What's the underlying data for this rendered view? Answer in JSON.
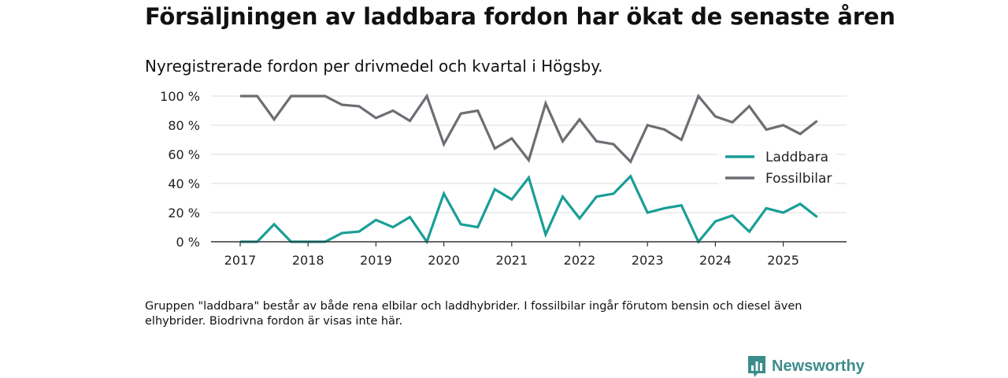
{
  "header": {
    "title": "Försäljningen av laddbara fordon har ökat de senaste åren",
    "subtitle": "Nyregistrerade fordon per drivmedel och kvartal i Högsby."
  },
  "footnote": "Gruppen \"laddbara\" består av både rena elbilar och laddhybrider. I fossilbilar ingår förutom bensin och diesel även elhybrider. Biodrivna fordon är visas inte här.",
  "brand": {
    "name": "Newsworthy",
    "icon": "newsworthy-logo-icon"
  },
  "colors": {
    "laddbara": "#1a9e96",
    "fossil": "#6e6d73",
    "grid": "#dddddd",
    "axis": "#333333"
  },
  "chart_data": {
    "type": "line",
    "title": "Försäljningen av laddbara fordon har ökat de senaste åren",
    "xlabel": "",
    "ylabel": "",
    "ylim": [
      0,
      100
    ],
    "y_ticks": [
      0,
      20,
      40,
      60,
      80,
      100
    ],
    "y_tick_labels": [
      "0 %",
      "20 %",
      "40 %",
      "60 %",
      "80 %",
      "100 %"
    ],
    "x_tick_labels": [
      "2017",
      "2018",
      "2019",
      "2020",
      "2021",
      "2022",
      "2023",
      "2024",
      "2025"
    ],
    "legend_position": "right",
    "x": [
      "2017 Q1",
      "2017 Q2",
      "2017 Q3",
      "2017 Q4",
      "2018 Q1",
      "2018 Q2",
      "2018 Q3",
      "2018 Q4",
      "2019 Q1",
      "2019 Q2",
      "2019 Q3",
      "2019 Q4",
      "2020 Q1",
      "2020 Q2",
      "2020 Q3",
      "2020 Q4",
      "2021 Q1",
      "2021 Q2",
      "2021 Q3",
      "2021 Q4",
      "2022 Q1",
      "2022 Q2",
      "2022 Q3",
      "2022 Q4",
      "2023 Q1",
      "2023 Q2",
      "2023 Q3",
      "2023 Q4",
      "2024 Q1",
      "2024 Q2",
      "2024 Q3",
      "2024 Q4",
      "2025 Q1",
      "2025 Q2",
      "2025 Q3"
    ],
    "series": [
      {
        "name": "Laddbara",
        "color": "#1a9e96",
        "values": [
          0,
          0,
          12,
          0,
          0,
          0,
          6,
          7,
          15,
          10,
          17,
          0,
          33,
          12,
          10,
          36,
          29,
          44,
          5,
          31,
          16,
          31,
          33,
          45,
          20,
          23,
          25,
          0,
          14,
          18,
          7,
          23,
          20,
          26,
          17
        ]
      },
      {
        "name": "Fossilbilar",
        "color": "#6e6d73",
        "values": [
          100,
          100,
          84,
          100,
          100,
          100,
          94,
          93,
          85,
          90,
          83,
          100,
          67,
          88,
          90,
          64,
          71,
          56,
          95,
          69,
          84,
          69,
          67,
          55,
          80,
          77,
          70,
          100,
          86,
          82,
          93,
          77,
          80,
          74,
          83
        ]
      }
    ]
  }
}
